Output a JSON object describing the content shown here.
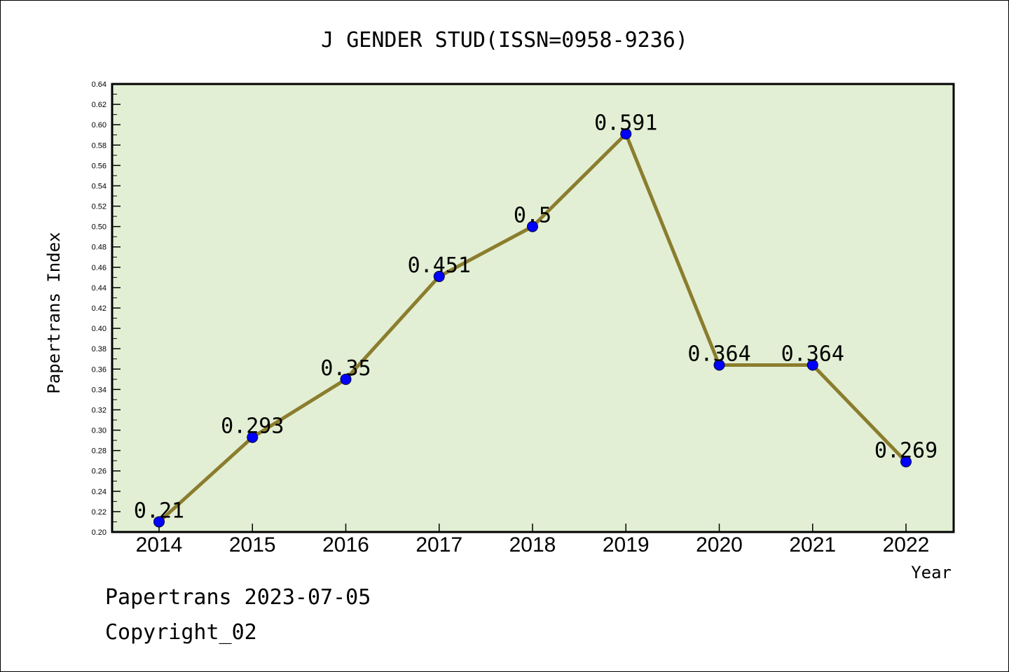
{
  "chart_data": {
    "type": "line",
    "title": "J GENDER STUD(ISSN=0958-9236)",
    "xlabel": "Year",
    "ylabel": "Papertrans Index",
    "categories": [
      "2014",
      "2015",
      "2016",
      "2017",
      "2018",
      "2019",
      "2020",
      "2021",
      "2022"
    ],
    "values": [
      0.21,
      0.293,
      0.35,
      0.451,
      0.5,
      0.591,
      0.364,
      0.364,
      0.269
    ],
    "value_labels": [
      "0.21",
      "0.293",
      "0.35",
      "0.451",
      "0.5",
      "0.591",
      "0.364",
      "0.364",
      "0.269"
    ],
    "ylim": [
      0.2,
      0.64
    ],
    "yticks": [
      "0.20",
      "0.22",
      "0.24",
      "0.26",
      "0.28",
      "0.30",
      "0.32",
      "0.34",
      "0.36",
      "0.38",
      "0.40",
      "0.42",
      "0.44",
      "0.46",
      "0.48",
      "0.50",
      "0.52",
      "0.54",
      "0.56",
      "0.58",
      "0.60",
      "0.62",
      "0.64"
    ],
    "grid": false,
    "colors": {
      "plot_background": "#e2efd4",
      "line": "#8b7d2e",
      "marker": "#0000ff"
    }
  },
  "footer": {
    "line1": "Papertrans 2023-07-05",
    "line2": "Copyright_02"
  }
}
